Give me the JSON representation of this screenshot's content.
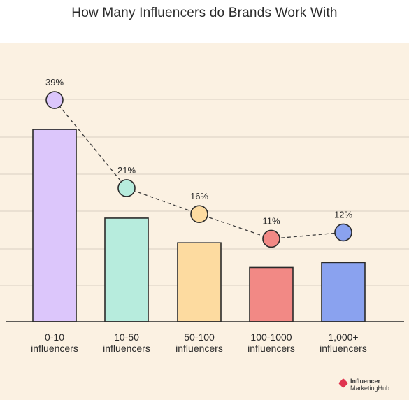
{
  "header": {
    "title": "How Many Influencers do Brands Work With"
  },
  "chart_data": {
    "type": "bar",
    "title": "How Many Influencers do Brands Work With",
    "categories": [
      [
        "0-10",
        "influencers"
      ],
      [
        "10-50",
        "influencers"
      ],
      [
        "50-100",
        "influencers"
      ],
      [
        "100-1000",
        "influencers"
      ],
      [
        "1,000+",
        "influencers"
      ]
    ],
    "values": [
      39,
      21,
      16,
      11,
      12
    ],
    "value_labels": [
      "39%",
      "21%",
      "16%",
      "11%",
      "12%"
    ],
    "unit": "%",
    "ylim": [
      0,
      50
    ],
    "grid": true,
    "overlay_line": "dashed line with circle markers over the bars",
    "colors": [
      "#dcc6fb",
      "#b7ecdd",
      "#fddba0",
      "#f28985",
      "#8aa2ef"
    ]
  },
  "branding": {
    "line1": "Influencer",
    "line2": "MarketingHub"
  }
}
